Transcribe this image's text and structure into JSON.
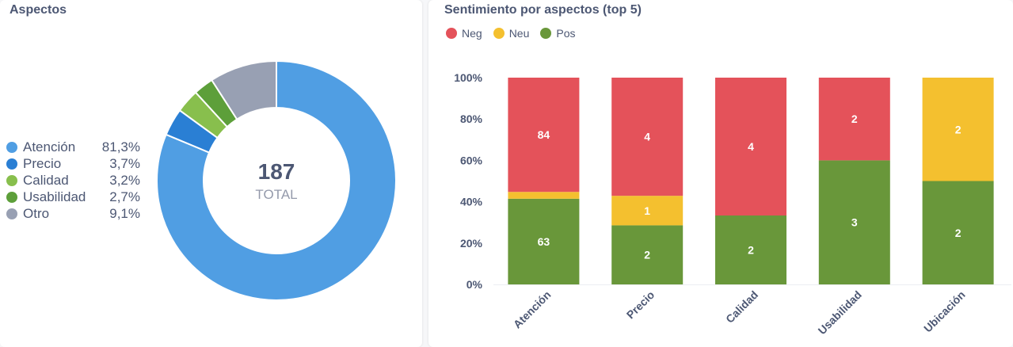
{
  "colors": {
    "atencion": "#509ee3",
    "precio": "#2a7fd4",
    "calidad": "#88bf4d",
    "usabilidad": "#5d9f3a",
    "otro": "#98a0b3",
    "neg": "#e4525a",
    "neu": "#f4c02f",
    "pos": "#69973a"
  },
  "left_card": {
    "title": "Aspectos",
    "total_value": "187",
    "total_label": "TOTAL",
    "legend": [
      {
        "label": "Atención",
        "pct": "81,3%"
      },
      {
        "label": "Precio",
        "pct": "3,7%"
      },
      {
        "label": "Calidad",
        "pct": "3,2%"
      },
      {
        "label": "Usabilidad",
        "pct": "2,7%"
      },
      {
        "label": "Otro",
        "pct": "9,1%"
      }
    ]
  },
  "right_card": {
    "title": "Sentimiento por aspectos (top 5)",
    "legend": [
      "Neg",
      "Neu",
      "Pos"
    ]
  },
  "chart_data": [
    {
      "type": "pie",
      "title": "Aspectos",
      "total": 187,
      "categories": [
        "Atención",
        "Precio",
        "Calidad",
        "Usabilidad",
        "Otro"
      ],
      "values": [
        81.3,
        3.7,
        3.2,
        2.7,
        9.1
      ],
      "unit": "%"
    },
    {
      "type": "bar",
      "stacked": true,
      "normalized": true,
      "title": "Sentimiento por aspectos (top 5)",
      "categories": [
        "Atención",
        "Precio",
        "Calidad",
        "Usabilidad",
        "Ubicación"
      ],
      "series": [
        {
          "name": "Pos",
          "values": [
            63,
            2,
            2,
            3,
            2
          ]
        },
        {
          "name": "Neu",
          "values": [
            5,
            1,
            0,
            0,
            2
          ]
        },
        {
          "name": "Neg",
          "values": [
            84,
            4,
            4,
            2,
            0
          ]
        }
      ],
      "ylim": [
        0,
        100
      ],
      "yticks": [
        "0%",
        "20%",
        "40%",
        "60%",
        "80%",
        "100%"
      ],
      "legend_position": "top-left"
    }
  ]
}
